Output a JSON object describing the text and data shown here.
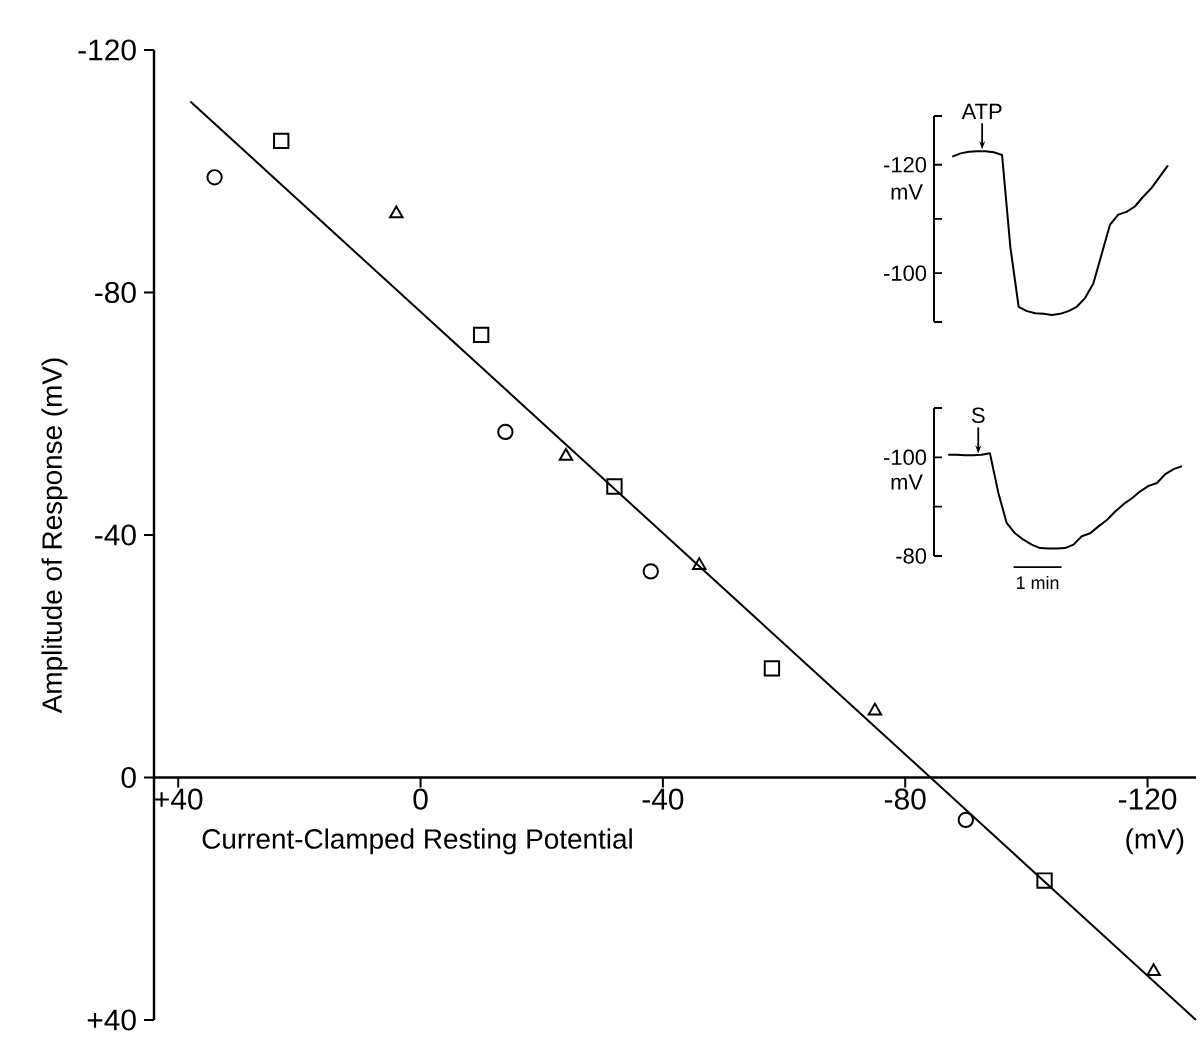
{
  "chart_data": [
    {
      "type": "scatter",
      "xlabel": "Current-Clamped Resting Potential",
      "ylabel": "Amplitude of Response (mV)",
      "annotations": [
        "(mV)"
      ],
      "xlim": [
        44,
        -128
      ],
      "ylim": [
        40,
        -120
      ],
      "xticks": [
        {
          "value": 40,
          "label": "+40"
        },
        0,
        -40,
        -80,
        -120
      ],
      "yticks": [
        -120,
        -80,
        -40,
        0,
        {
          "value": 40,
          "label": "+40"
        }
      ],
      "series": [
        {
          "marker": "circle",
          "color": "#000000",
          "x": [
            34,
            -14,
            -38,
            -90
          ],
          "values": [
            -99,
            -57,
            -34,
            7
          ]
        },
        {
          "marker": "square",
          "color": "#000000",
          "x": [
            23,
            -10,
            -32,
            -58,
            -103
          ],
          "values": [
            -105,
            -73,
            -48,
            -18,
            17
          ]
        },
        {
          "marker": "triangle",
          "color": "#000000",
          "x": [
            4,
            -24,
            -46,
            -75,
            -121
          ],
          "values": [
            -93,
            -53,
            -35,
            -11,
            32
          ]
        },
        {
          "type": "line",
          "color": "#000000",
          "x": [
            38,
            -128
          ],
          "values": [
            -111.5,
            40
          ]
        }
      ]
    },
    {
      "type": "line",
      "ylabel": "mV",
      "annotations": [
        "ATP"
      ],
      "tick_labels": "y",
      "categories": [
        null,
        null,
        null,
        null,
        null,
        null,
        null,
        null,
        null,
        null,
        null,
        null,
        null,
        null,
        null,
        null,
        null,
        null,
        null,
        null,
        null,
        null,
        null,
        null,
        null,
        null,
        null
      ],
      "ylim": [
        -91,
        -129
      ],
      "yticks": [
        -120,
        {
          "value": -110,
          "label": null
        },
        -100
      ],
      "series": [
        {
          "color": "#000000",
          "values": [
            -121.5,
            -122.1,
            -122.4,
            -122.5,
            -122.5,
            -122.3,
            -121.8,
            -104.8,
            -93.8,
            -93.0,
            -92.6,
            -92.5,
            -92.3,
            -92.5,
            -93.0,
            -93.8,
            -95.4,
            -98.1,
            -103.5,
            -108.9,
            -110.8,
            -111.3,
            -112.3,
            -114.1,
            -115.7,
            -117.8,
            -119.9
          ]
        }
      ]
    },
    {
      "type": "line",
      "ylabel": "mV",
      "annotations": [
        "S",
        "1 min"
      ],
      "tick_labels": "y",
      "categories": [
        null,
        null,
        null,
        null,
        null,
        null,
        null,
        null,
        null,
        null,
        null,
        null,
        null,
        null,
        null,
        null,
        null,
        null,
        null,
        null,
        null,
        null,
        null,
        null,
        null,
        null,
        null,
        null,
        null
      ],
      "ylim": [
        -80,
        -110
      ],
      "yticks": [
        -100,
        {
          "value": -90,
          "label": null
        },
        -80
      ],
      "series": [
        {
          "color": "#000000",
          "values": [
            -100.5,
            -100.5,
            -100.4,
            -100.4,
            -100.5,
            -100.8,
            -92.8,
            -86.7,
            -84.6,
            -83.3,
            -82.3,
            -81.6,
            -81.5,
            -81.5,
            -81.6,
            -82.3,
            -84.0,
            -84.6,
            -86.0,
            -87.3,
            -89.0,
            -90.5,
            -91.7,
            -93.1,
            -94.2,
            -94.8,
            -96.6,
            -97.6,
            -98.2
          ]
        }
      ]
    }
  ]
}
